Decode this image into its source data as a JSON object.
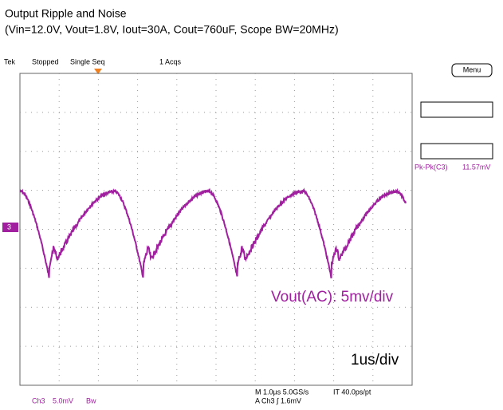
{
  "header": {
    "title": "Output Ripple and Noise",
    "subtitle": "(Vin=12.0V, Vout=1.8V, Iout=30A, Cout=760uF, Scope BW=20MHz)"
  },
  "status": {
    "brand": "Tek",
    "state": "Stopped",
    "mode": "Single Seq",
    "acqs": "1 Acqs"
  },
  "menu": "Menu",
  "measurement": {
    "label": "Pk-Pk(C3)",
    "value": "11.57mV"
  },
  "channel_marker": "3",
  "annotations": {
    "vertical": "Vout(AC): 5mv/div",
    "horizontal": "1us/div"
  },
  "footer": {
    "channel": "Ch3",
    "scale": "5.0mV",
    "bw": "Bw",
    "timebase": "M 1.0µs 5.0GS/s",
    "resolution": "IT 40.0ps/pt",
    "trigger": "A  Ch3  ∫  1.6mV"
  }
}
